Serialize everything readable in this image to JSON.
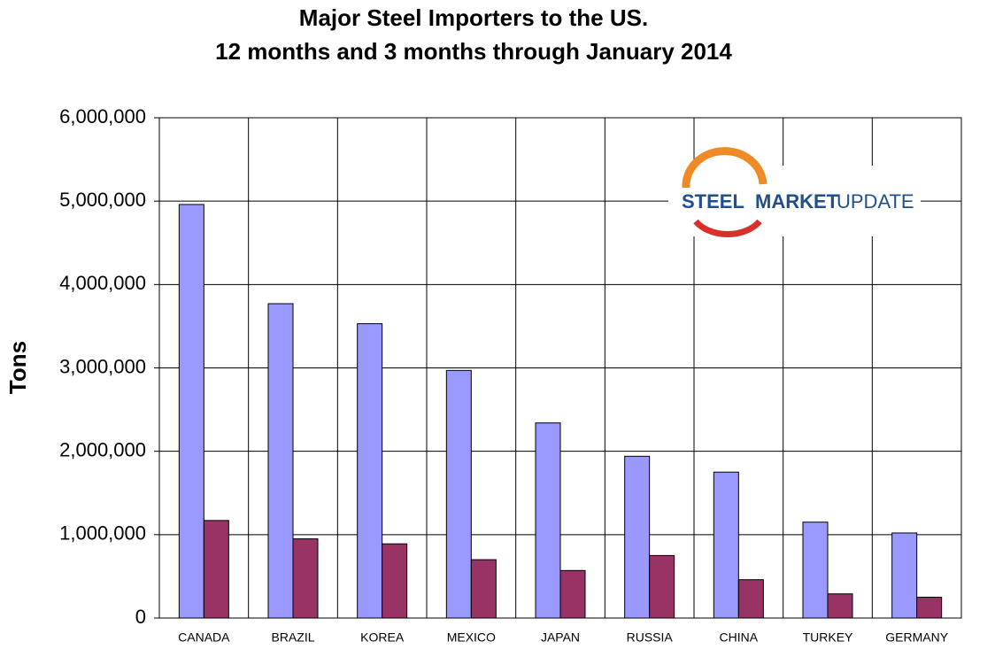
{
  "chart_data": {
    "type": "bar",
    "title": "Major Steel Importers to the US.",
    "subtitle": "12 months and 3 months through January 2014",
    "y_label": "Tons",
    "categories": [
      "CANADA",
      "BRAZIL",
      "KOREA",
      "MEXICO",
      "JAPAN",
      "RUSSIA",
      "CHINA",
      "TURKEY",
      "GERMANY"
    ],
    "series": [
      {
        "color": "#9999ff",
        "values": [
          4960000,
          3770000,
          3530000,
          2970000,
          2340000,
          1940000,
          1750000,
          1150000,
          1020000
        ]
      },
      {
        "color": "#993366",
        "values": [
          1170000,
          950000,
          890000,
          700000,
          570000,
          750000,
          460000,
          290000,
          250000
        ]
      }
    ],
    "ylim": [
      0,
      6000000
    ],
    "yticks": [
      0,
      {
        "value": 1000000,
        "label": "1,000,000"
      },
      {
        "value": 2000000,
        "label": "2,000,000"
      },
      {
        "value": 3000000,
        "label": "3,000,000"
      },
      {
        "value": 4000000,
        "label": "4,000,000"
      },
      {
        "value": 5000000,
        "label": "5,000,000"
      },
      {
        "value": 6000000,
        "label": "6,000,000"
      }
    ],
    "grid": true,
    "logo": {
      "words": [
        "STEEL",
        "MARKET",
        "UPDATE"
      ]
    }
  }
}
